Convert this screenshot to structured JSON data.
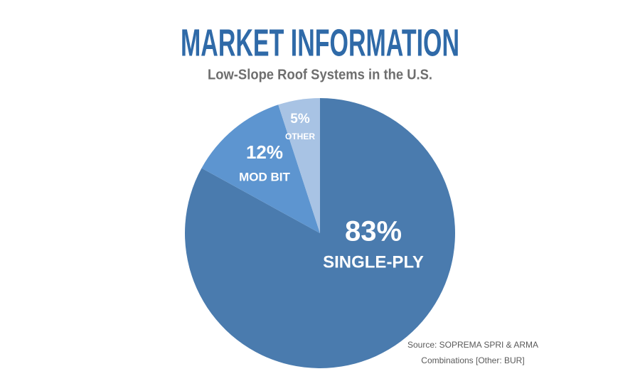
{
  "chart_data": {
    "type": "pie",
    "title": "MARKET INFORMATION",
    "subtitle": "Low-Slope Roof Systems in the U.S.",
    "categories": [
      "SINGLE-PLY",
      "MOD BIT",
      "OTHER"
    ],
    "values": [
      83,
      12,
      5
    ],
    "value_labels": [
      "83%",
      "12%",
      "5%"
    ],
    "colors": [
      "#4a7bae",
      "#5d95d0",
      "#a8c3e4"
    ],
    "source": [
      "Source: SOPREMA SPRI & ARMA",
      "Combinations [Other: BUR]"
    ]
  }
}
